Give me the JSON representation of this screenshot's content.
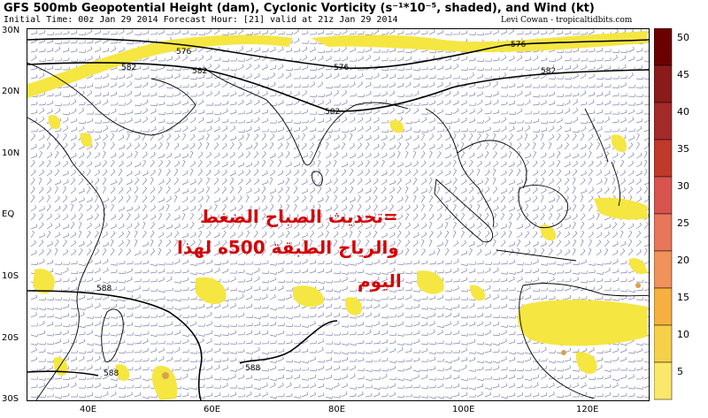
{
  "header": {
    "title": "GFS 500mb Geopotential Height (dam), Cyclonic Vorticity (s⁻¹*10⁻⁵, shaded), and Wind (kt)",
    "subtitle": "Initial Time: 00z Jan 29 2014 Forecast Hour: [21] valid at 21z Jan 29 2014",
    "credit": "Levi Cowan - tropicaltidbits.com"
  },
  "map": {
    "lat_labels": [
      "30N",
      "20N",
      "10N",
      "EQ",
      "10S",
      "20S",
      "30S"
    ],
    "lon_labels": [
      "40E",
      "60E",
      "80E",
      "100E",
      "120E"
    ],
    "contour_labels": [
      "576",
      "582",
      "576",
      "582",
      "576",
      "582",
      "582",
      "588",
      "588",
      "588"
    ],
    "colorbar_ticks": [
      "50",
      "45",
      "40",
      "35",
      "30",
      "25",
      "20",
      "15",
      "10",
      "5"
    ],
    "colorbar_colors": [
      "#6b0000",
      "#8b1a1a",
      "#a52a2a",
      "#c0392b",
      "#d9534f",
      "#e8765a",
      "#f0925a",
      "#f5b041",
      "#f7d04a",
      "#fbe86a"
    ],
    "shade_color": "#f5e642",
    "land_color": "#000000",
    "contour_color": "#000000"
  },
  "overlay": {
    "line1": "=تحديث الصباح الضغط",
    "line2": "والرياح الطبقة 500ه لهذا",
    "line3": "اليوم"
  }
}
